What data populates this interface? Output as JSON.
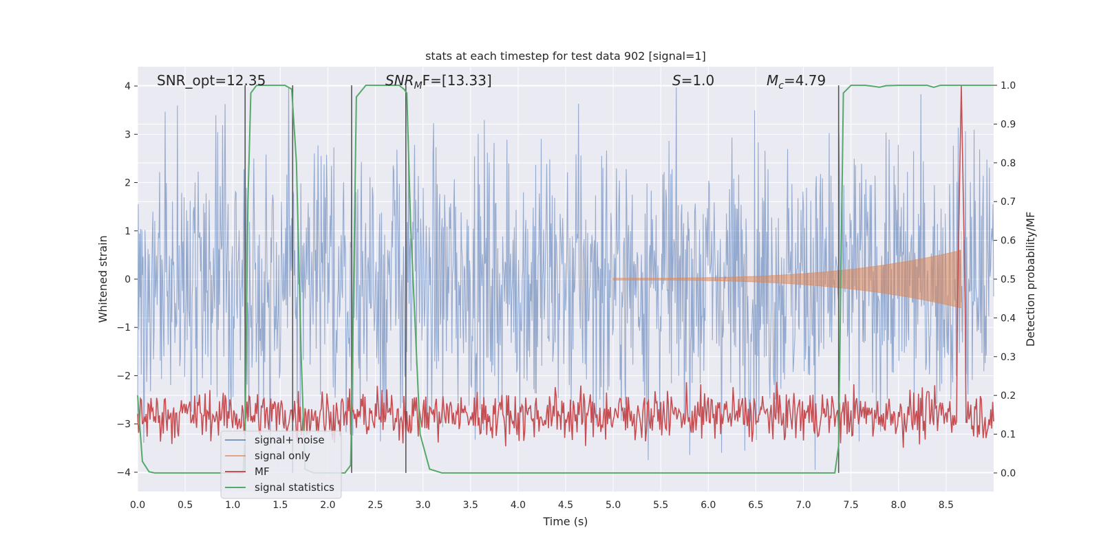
{
  "colors": {
    "background": "#eaeaf2",
    "grid": "#ffffff",
    "signal_noise": "#4c72b0",
    "signal_only": "#dd8452",
    "mf": "#c44e52",
    "signal_statistics": "#55a868",
    "vlines": "#555555"
  },
  "chart_data": {
    "type": "line",
    "title": "stats at each timestep for test data 902 [signal=1]",
    "xlabel": "Time (s)",
    "ylabel_left": "Whitened strain",
    "ylabel_right": "Detection probability/MF",
    "xlim": [
      0.0,
      9.0
    ],
    "ylim_left": [
      -4.4,
      4.4
    ],
    "ylim_right": [
      -0.048,
      1.048
    ],
    "x_ticks": [
      "0.0",
      "0.5",
      "1.0",
      "1.5",
      "2.0",
      "2.5",
      "3.0",
      "3.5",
      "4.0",
      "4.5",
      "5.0",
      "5.5",
      "6.0",
      "6.5",
      "7.0",
      "7.5",
      "8.0",
      "8.5"
    ],
    "y_ticks_left": [
      "4",
      "3",
      "2",
      "1",
      "0",
      "−1",
      "−2",
      "−3",
      "−4"
    ],
    "y_ticks_right": [
      "1.0",
      "0.9",
      "0.8",
      "0.7",
      "0.6",
      "0.5",
      "0.4",
      "0.3",
      "0.2",
      "0.1",
      "0.0"
    ],
    "annotations": {
      "snr_opt": "SNR_opt=12.35",
      "snr_mf_prefix": "SNR",
      "snr_mf_sub": "M",
      "snr_mf_rest": "F=[13.33]",
      "s_prefix": "S",
      "s_rest": "=1.0",
      "mc_prefix": "M",
      "mc_sub": "c",
      "mc_rest": "=4.79"
    },
    "legend": {
      "placement": "lower-left",
      "entries": [
        "signal+ noise",
        "signal only",
        "MF",
        "signal statistics"
      ]
    },
    "vertical_lines_x": [
      1.13,
      1.63,
      2.25,
      2.82,
      7.37
    ],
    "signal_noise": {
      "name": "signal+ noise",
      "typical_envelope_upper": 1.6,
      "typical_envelope_lower": -1.6,
      "peak_max": 3.97,
      "peak_min": -3.95
    },
    "signal_only": {
      "name": "signal only",
      "chirp_start_x": 5.0,
      "chirp_end_x": 8.66,
      "amplitude_start": 0.02,
      "amplitude_end": 0.6,
      "final_peak_upper": 1.0,
      "final_peak_lower": -1.1
    },
    "mf": {
      "name": "MF",
      "baseline": 0.15,
      "noise_amplitude": 0.07,
      "peak_x": 8.66,
      "peak_value": 1.0
    },
    "signal_statistics": {
      "name": "signal statistics",
      "x": [
        0.0,
        0.05,
        0.12,
        0.18,
        0.3,
        1.05,
        1.11,
        1.13,
        1.16,
        1.19,
        1.25,
        1.55,
        1.62,
        1.67,
        1.72,
        1.76,
        1.85,
        2.18,
        2.24,
        2.26,
        2.3,
        2.4,
        2.75,
        2.8,
        2.83,
        2.87,
        2.97,
        3.07,
        3.2,
        7.2,
        7.33,
        7.37,
        7.42,
        7.5,
        7.65,
        7.72,
        7.8,
        7.87,
        8.0,
        8.3,
        8.37,
        8.44,
        9.0
      ],
      "y": [
        0.2,
        0.03,
        0.003,
        0.0,
        0.0,
        0.0,
        0.0,
        0.1,
        0.7,
        0.98,
        1.0,
        1.0,
        0.99,
        0.8,
        0.3,
        0.01,
        0.0,
        0.0,
        0.02,
        0.3,
        0.97,
        1.0,
        1.0,
        0.99,
        0.98,
        0.64,
        0.1,
        0.01,
        0.0,
        0.0,
        0.0,
        0.07,
        0.98,
        1.0,
        1.0,
        0.998,
        0.995,
        0.999,
        1.0,
        1.0,
        0.995,
        1.0,
        1.0
      ]
    }
  }
}
